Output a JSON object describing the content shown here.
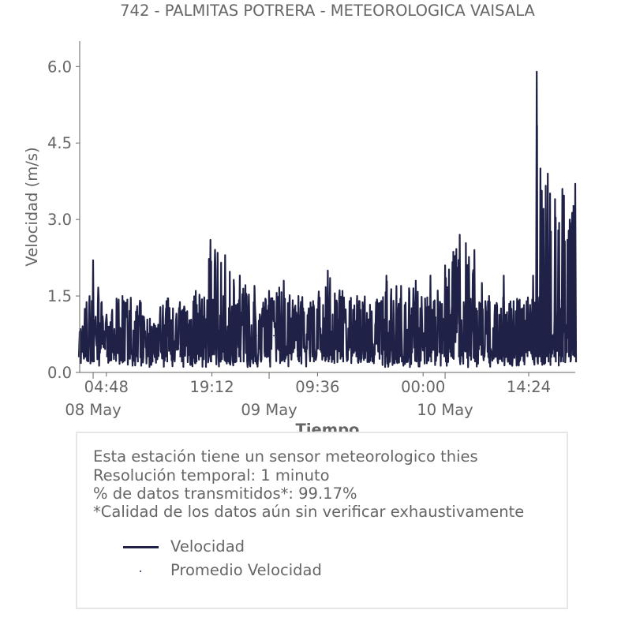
{
  "chart_data": {
    "type": "line",
    "title": "742 - PALMITAS POTRERA - METEOROLOGICA VAISALA",
    "xlabel": "Tiempo",
    "ylabel": "Velocidad (m/s)",
    "ylim": [
      0,
      6.5
    ],
    "xlim": [
      "2020-05-08 01:10",
      "2020-05-10 20:45"
    ],
    "yticks": [
      "0.0",
      "1.5",
      "3.0",
      "4.5",
      "6.0"
    ],
    "xticks": [
      {
        "time": "2020-05-08 04:48",
        "label": "04:48"
      },
      {
        "time": "2020-05-08 19:12",
        "label": "19:12"
      },
      {
        "time": "2020-05-09 09:36",
        "label": "09:36"
      },
      {
        "time": "2020-05-10 00:00",
        "label": "00:00"
      },
      {
        "time": "2020-05-10 14:24",
        "label": "14:24"
      }
    ],
    "date_labels": [
      {
        "time": "2020-05-08 03:00",
        "label": "08 May"
      },
      {
        "time": "2020-05-09 03:00",
        "label": "09 May"
      },
      {
        "time": "2020-05-10 03:00",
        "label": "10 May"
      }
    ],
    "grid": false,
    "series": [
      {
        "name": "Velocidad",
        "color": "#1f2147",
        "style": "line",
        "x": [
          "2020-05-08 01:10",
          "2020-05-08 03:00",
          "2020-05-08 05:00",
          "2020-05-08 07:00",
          "2020-05-08 09:00",
          "2020-05-08 11:00",
          "2020-05-08 13:00",
          "2020-05-08 15:00",
          "2020-05-08 17:00",
          "2020-05-08 19:00",
          "2020-05-08 21:00",
          "2020-05-08 23:00",
          "2020-05-09 01:00",
          "2020-05-09 03:00",
          "2020-05-09 05:00",
          "2020-05-09 07:00",
          "2020-05-09 09:00",
          "2020-05-09 11:00",
          "2020-05-09 13:00",
          "2020-05-09 15:00",
          "2020-05-09 17:00",
          "2020-05-09 19:00",
          "2020-05-09 21:00",
          "2020-05-09 23:00",
          "2020-05-10 01:00",
          "2020-05-10 03:00",
          "2020-05-10 05:00",
          "2020-05-10 07:00",
          "2020-05-10 09:00",
          "2020-05-10 11:00",
          "2020-05-10 13:00",
          "2020-05-10 15:00",
          "2020-05-10 15:30",
          "2020-05-10 16:00",
          "2020-05-10 17:00",
          "2020-05-10 18:00",
          "2020-05-10 19:00",
          "2020-05-10 20:00",
          "2020-05-10 20:45"
        ],
        "values": [
          0.8,
          2.2,
          0.9,
          1.5,
          1.3,
          0.9,
          1.4,
          1.2,
          1.6,
          2.6,
          2.3,
          1.9,
          1.7,
          1.6,
          1.8,
          1.5,
          1.4,
          2.0,
          1.6,
          1.5,
          1.2,
          1.9,
          1.7,
          1.8,
          1.9,
          2.1,
          2.7,
          2.4,
          1.5,
          1.9,
          1.4,
          1.9,
          5.9,
          4.0,
          3.9,
          3.4,
          3.6,
          3.0,
          3.7
        ]
      },
      {
        "name": "Promedio Velocidad",
        "color": "#1f2147",
        "style": "dots",
        "value": 0.72
      }
    ]
  },
  "info": {
    "line1": "Esta estación tiene un sensor meteorologico thies",
    "line2": "Resolución temporal: 1 minuto",
    "line3": "% de datos transmitidos*: 99.17%",
    "line4": "*Calidad de los datos aún sin verificar exhaustivamente"
  },
  "legend": {
    "line_label": "Velocidad",
    "dots_label": "Promedio Velocidad"
  }
}
